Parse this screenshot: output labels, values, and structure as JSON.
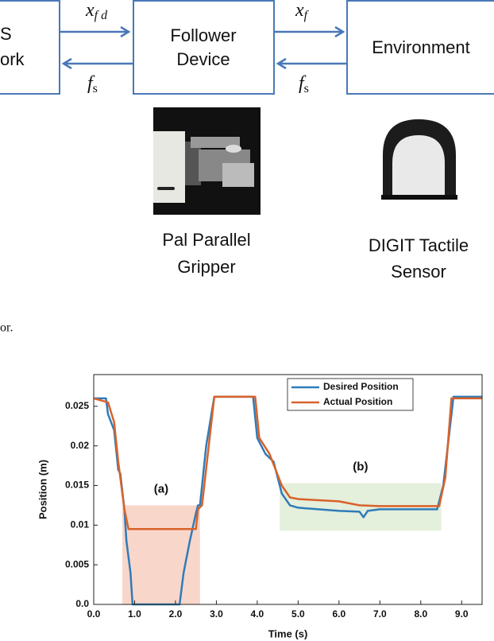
{
  "diagram": {
    "boxes": [
      {
        "lines": [
          "S",
          "ork"
        ]
      },
      {
        "lines": [
          "Follower",
          "Device"
        ]
      },
      {
        "lines": [
          "Environment"
        ]
      }
    ],
    "arrows": [
      {
        "base": "x",
        "sub": "f d"
      },
      {
        "base": "f",
        "sub": "s"
      },
      {
        "base": "x",
        "sub": "f"
      },
      {
        "base": "f",
        "sub": "s"
      }
    ],
    "devices": [
      {
        "lines": [
          "Pal Parallel",
          "Gripper"
        ]
      },
      {
        "lines": [
          "DIGIT Tactile",
          "Sensor"
        ]
      }
    ],
    "caption_fragment": "or."
  },
  "chart_data": {
    "type": "line",
    "xlabel": "Time (s)",
    "ylabel": "Position (m)",
    "xlim": [
      0,
      9.5
    ],
    "ylim": [
      0,
      0.029
    ],
    "xticks": [
      {
        "value": 0,
        "label": "0.0"
      },
      {
        "value": 1,
        "label": "1.0"
      },
      {
        "value": 2,
        "label": "2.0"
      },
      {
        "value": 3,
        "label": "3.0"
      },
      {
        "value": 4,
        "label": "4.0"
      },
      {
        "value": 5,
        "label": "5.0"
      },
      {
        "value": 6,
        "label": "6.0"
      },
      {
        "value": 7,
        "label": "7.0"
      },
      {
        "value": 8,
        "label": "8.0"
      },
      {
        "value": 9,
        "label": "9.0"
      }
    ],
    "yticks": [
      {
        "value": 0,
        "label": "0.0"
      },
      0.005,
      0.01,
      0.015,
      0.02,
      0.025
    ],
    "legend": "upper right",
    "regions": [
      {
        "label": "(a)",
        "x": [
          0.7,
          2.6
        ],
        "y": [
          0,
          0.0125
        ],
        "color": "#f9d6ca"
      },
      {
        "label": "(b)",
        "x": [
          4.55,
          8.5
        ],
        "y": [
          0.0093,
          0.0153
        ],
        "color": "#e4efdc"
      }
    ],
    "series": [
      {
        "name": "Desired Position",
        "color": "#2f7cb8",
        "x": [
          0,
          0.3,
          0.35,
          0.5,
          0.6,
          0.65,
          0.75,
          0.8,
          0.9,
          0.95,
          2.1,
          2.2,
          2.35,
          2.5,
          2.55,
          2.6,
          2.75,
          2.95,
          3.9,
          4.0,
          4.2,
          4.4,
          4.6,
          4.8,
          5.0,
          5.5,
          6.0,
          6.5,
          6.6,
          6.7,
          7.0,
          8.4,
          8.55,
          8.8,
          9.5
        ],
        "values": [
          0.026,
          0.026,
          0.024,
          0.022,
          0.017,
          0.0165,
          0.012,
          0.008,
          0.004,
          0,
          0,
          0.004,
          0.008,
          0.0115,
          0.0125,
          0.0125,
          0.02,
          0.0262,
          0.0262,
          0.021,
          0.019,
          0.018,
          0.014,
          0.0125,
          0.0122,
          0.012,
          0.0118,
          0.0117,
          0.011,
          0.0118,
          0.012,
          0.012,
          0.015,
          0.0262,
          0.0262
        ]
      },
      {
        "name": "Actual Position",
        "color": "#d9622b",
        "x": [
          0,
          0.35,
          0.5,
          0.6,
          0.75,
          0.85,
          2.5,
          2.55,
          2.65,
          2.95,
          3.95,
          4.05,
          4.3,
          4.6,
          4.8,
          5.0,
          6.0,
          6.5,
          7.0,
          8.45,
          8.6,
          8.75,
          9.5
        ],
        "values": [
          0.026,
          0.0255,
          0.023,
          0.018,
          0.012,
          0.0095,
          0.0095,
          0.012,
          0.0125,
          0.0262,
          0.0262,
          0.021,
          0.019,
          0.015,
          0.0135,
          0.0133,
          0.013,
          0.0125,
          0.0124,
          0.0124,
          0.016,
          0.026,
          0.026
        ]
      }
    ]
  }
}
